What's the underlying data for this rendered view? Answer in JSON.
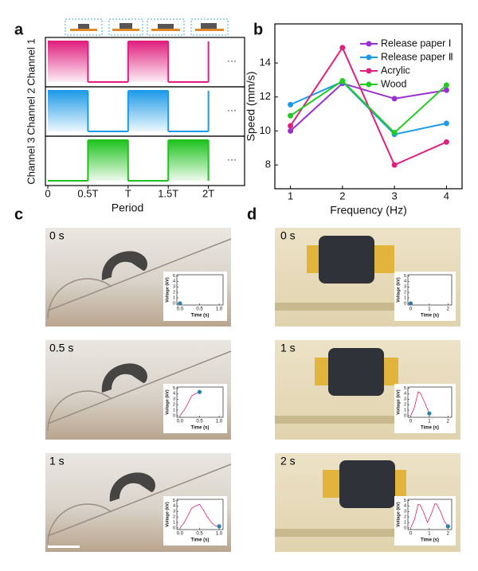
{
  "panel_labels": [
    "a",
    "b",
    "c",
    "d"
  ],
  "photo_labels": [
    "0 s",
    "0.5 s",
    "1 s",
    "0 s",
    "1 s",
    "2 s"
  ],
  "chart_data": [
    {
      "type": "step",
      "x_label": "Period",
      "x": [
        0,
        0.5,
        1,
        1.5
      ],
      "series": [
        {
          "name": "Channel 1",
          "color": "#e0207f",
          "values": [
            1,
            0,
            1,
            0
          ]
        },
        {
          "name": "Channel 2",
          "color": "#1e9be8",
          "values": [
            1,
            0,
            1,
            0
          ]
        },
        {
          "name": "Channel 3",
          "color": "#1fc21f",
          "values": [
            0,
            1,
            0,
            1
          ]
        }
      ],
      "annotations": [
        "···",
        "···",
        "···"
      ],
      "xlim": [
        0,
        2.45
      ],
      "xticks": [
        0,
        {
          "value": 0.5,
          "label": "0.5T"
        },
        {
          "value": 1,
          "label": "T"
        },
        {
          "value": 1.5,
          "label": "1.5T"
        },
        {
          "value": 2,
          "label": "2T"
        }
      ]
    },
    {
      "type": "line",
      "x_label": "Frequency (Hz)",
      "y_label": "Speed (mm/s)",
      "x": [
        1,
        2,
        3,
        4
      ],
      "series": [
        {
          "name": "Release paper Ⅰ",
          "color": "#9b30d0",
          "values": [
            10.0,
            12.8,
            11.9,
            12.4
          ]
        },
        {
          "name": "Release paper Ⅱ",
          "color": "#1e9be8",
          "values": [
            11.55,
            12.9,
            9.8,
            10.45
          ]
        },
        {
          "name": "Acrylic",
          "color": "#e0207f",
          "values": [
            10.3,
            14.9,
            8.0,
            9.35
          ]
        },
        {
          "name": "Wood",
          "color": "#22cc22",
          "values": [
            10.9,
            12.95,
            9.9,
            12.7
          ]
        }
      ],
      "xlim": [
        0.7,
        4.3
      ],
      "ylim": [
        6.6,
        16.3
      ],
      "xticks": [
        1,
        2,
        3,
        4
      ],
      "yticks": [
        8,
        10,
        12,
        14
      ],
      "legend": "upper right"
    },
    {
      "type": "inset",
      "x_label": "Time (s)",
      "y_label": "Voltage (kV)",
      "color": "#e0206f",
      "dot_color": "#2a7fa8",
      "x": [
        0
      ],
      "values": [
        0
      ],
      "xlim": [
        -0.08,
        1.1
      ],
      "ylim": [
        -0.3,
        5.2
      ],
      "xticks": [
        {
          "value": 0,
          "label": "0.0"
        },
        0.5,
        {
          "value": 1,
          "label": "1.0"
        }
      ],
      "yticks": [
        0,
        1,
        2,
        3,
        4,
        5
      ]
    },
    {
      "type": "inset",
      "x_label": "Time (s)",
      "y_label": "Voltage (kV)",
      "color": "#e0206f",
      "dot_color": "#2a7fa8",
      "x": [
        0,
        0.1,
        0.2,
        0.3,
        0.4,
        0.5
      ],
      "values": [
        0,
        0.9,
        2.2,
        3.6,
        4.0,
        4.3
      ],
      "xlim": [
        -0.08,
        1.1
      ],
      "ylim": [
        -0.3,
        5.2
      ],
      "xticks": [
        {
          "value": 0,
          "label": "0.0"
        },
        0.5,
        {
          "value": 1,
          "label": "1.0"
        }
      ],
      "yticks": [
        0,
        1,
        2,
        3,
        4,
        5
      ]
    },
    {
      "type": "inset",
      "x_label": "Time (s)",
      "y_label": "Voltage (kV)",
      "color": "#e0206f",
      "dot_color": "#2a7fa8",
      "x": [
        0,
        0.1,
        0.2,
        0.3,
        0.4,
        0.5,
        0.6,
        0.7,
        0.8,
        0.9,
        1.0
      ],
      "values": [
        0,
        0.9,
        2.2,
        3.6,
        4.0,
        4.3,
        3.2,
        2.0,
        1.0,
        0.4,
        0.3
      ],
      "xlim": [
        -0.08,
        1.1
      ],
      "ylim": [
        -0.3,
        5.2
      ],
      "xticks": [
        {
          "value": 0,
          "label": "0.0"
        },
        0.5,
        {
          "value": 1,
          "label": "1.0"
        }
      ],
      "yticks": [
        0,
        1,
        2,
        3,
        4,
        5
      ]
    },
    {
      "type": "inset",
      "x_label": "Time (s)",
      "y_label": "Voltage (kV)",
      "color": "#e0206f",
      "dot_color": "#2a7fa8",
      "x": [
        0
      ],
      "values": [
        0
      ],
      "xlim": [
        -0.15,
        2.2
      ],
      "ylim": [
        -0.3,
        5.2
      ],
      "xticks": [
        0,
        1,
        2
      ],
      "yticks": [
        0,
        1,
        2,
        3,
        4,
        5
      ]
    },
    {
      "type": "inset",
      "x_label": "Time (s)",
      "y_label": "Voltage (kV)",
      "color": "#e0206f",
      "dot_color": "#2a7fa8",
      "x": [
        0,
        0.2,
        0.4,
        0.5,
        0.6,
        0.8,
        1.0
      ],
      "values": [
        0,
        1.5,
        4.3,
        4.2,
        3.5,
        2.0,
        0.4
      ],
      "xlim": [
        -0.15,
        2.2
      ],
      "ylim": [
        -0.3,
        5.2
      ],
      "xticks": [
        0,
        1,
        2
      ],
      "yticks": [
        0,
        1,
        2,
        3,
        4,
        5
      ]
    },
    {
      "type": "inset",
      "x_label": "Time (s)",
      "y_label": "Voltage (kV)",
      "color": "#e0206f",
      "dot_color": "#2a7fa8",
      "x": [
        0,
        0.2,
        0.4,
        0.5,
        0.7,
        0.9,
        1.1,
        1.3,
        1.4,
        1.6,
        1.8,
        2.0
      ],
      "values": [
        0,
        1.5,
        4.3,
        4.2,
        2.8,
        1.0,
        2.5,
        4.4,
        4.3,
        3.0,
        1.2,
        0.3
      ],
      "xlim": [
        -0.15,
        2.2
      ],
      "ylim": [
        -0.3,
        5.2
      ],
      "xticks": [
        0,
        1,
        2
      ],
      "yticks": [
        0,
        1,
        2,
        3,
        4,
        5
      ]
    }
  ]
}
